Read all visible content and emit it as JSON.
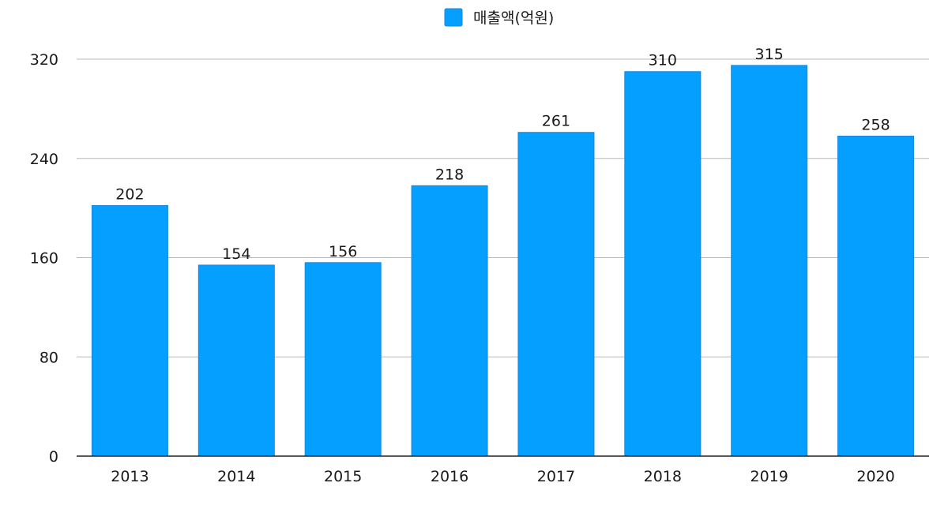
{
  "chart_data": {
    "type": "bar",
    "categories": [
      "2013",
      "2014",
      "2015",
      "2016",
      "2017",
      "2018",
      "2019",
      "2020"
    ],
    "series": [
      {
        "name": "매출액(억원)",
        "values": [
          202,
          154,
          156,
          218,
          261,
          310,
          315,
          258
        ]
      }
    ],
    "yticks": [
      "0",
      "80",
      "160",
      "240",
      "320"
    ],
    "ylim": [
      0,
      320
    ],
    "grid": true,
    "legend": "top-center",
    "data_labels": true,
    "colors": {
      "bar": "#05a0ff"
    }
  }
}
